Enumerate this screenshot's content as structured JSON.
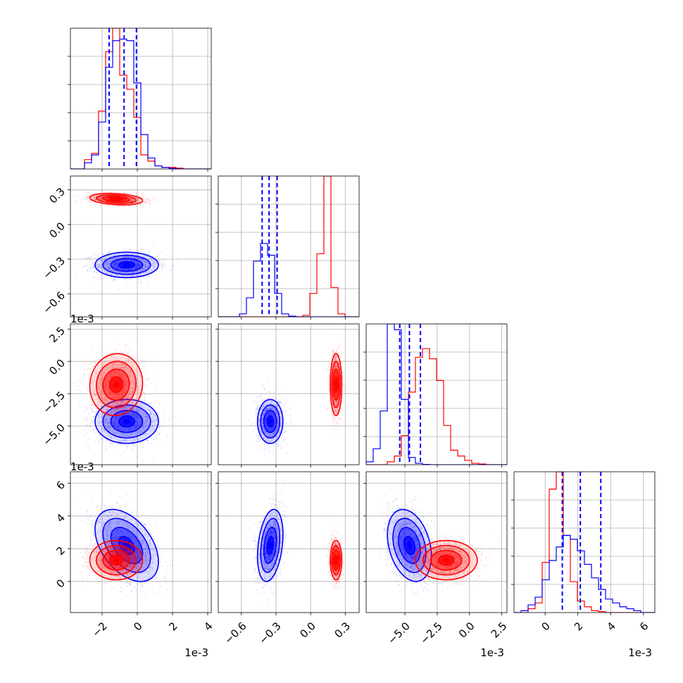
{
  "chart_data": {
    "type": "corner",
    "colors": {
      "series_a": "#0000ff",
      "series_b": "#ff0000",
      "quantile_line": "#0000ff"
    },
    "grid": true,
    "params": [
      {
        "range": [
          -3.8,
          4.2
        ],
        "scale": 0.001,
        "offset_text": "1e-3",
        "ticks": [
          -2,
          0,
          2,
          4
        ],
        "tick_labels": [
          "−2",
          "0",
          "2",
          "4"
        ]
      },
      {
        "range": [
          -0.8,
          0.42
        ],
        "scale": 1,
        "offset_text": "",
        "ticks": [
          -0.6,
          -0.3,
          0.0,
          0.3
        ],
        "tick_labels": [
          "−0.6",
          "−0.3",
          "0.0",
          "0.3"
        ]
      },
      {
        "range": [
          -8.0,
          2.9
        ],
        "scale": 0.001,
        "offset_text": "1e-3",
        "ticks": [
          -5.0,
          -2.5,
          0.0,
          2.5
        ],
        "tick_labels": [
          "−5.0",
          "−2.5",
          "0.0",
          "2.5"
        ]
      },
      {
        "range": [
          -1.9,
          6.7
        ],
        "scale": 0.001,
        "offset_text": "1e-3",
        "ticks": [
          0,
          2,
          4,
          6
        ],
        "tick_labels": [
          "0",
          "2",
          "4",
          "6"
        ]
      }
    ],
    "histograms": [
      {
        "param": 0,
        "bins": [
          -3.8,
          4.2,
          20
        ],
        "quantiles": [
          -1.6,
          -0.75,
          -0.05
        ],
        "blue": [
          0,
          0,
          0.04,
          0.09,
          0.3,
          0.65,
          0.82,
          0.83,
          0.82,
          0.55,
          0.22,
          0.07,
          0.02,
          0.01,
          0.004,
          0,
          0,
          0,
          0,
          0
        ],
        "red": [
          0,
          0,
          0.06,
          0.1,
          0.37,
          0.75,
          0.9,
          0.6,
          0.51,
          0.33,
          0.09,
          0.05,
          0.02,
          0.01,
          0.01,
          0.005,
          0,
          0,
          0,
          0
        ]
      },
      {
        "param": 1,
        "bins": [
          -0.8,
          0.42,
          20
        ],
        "quantiles": [
          -0.42,
          -0.36,
          -0.29
        ],
        "blue": [
          0,
          0,
          0,
          0.02,
          0.13,
          0.38,
          0.5,
          0.42,
          0.16,
          0.02,
          0.005,
          0,
          0,
          0,
          0,
          0,
          0,
          0,
          0,
          0
        ],
        "red": [
          0,
          0,
          0,
          0,
          0,
          0,
          0,
          0,
          0,
          0,
          0,
          0.001,
          0.01,
          0.16,
          0.43,
          0.96,
          0.2,
          0.02,
          0,
          0
        ]
      },
      {
        "param": 2,
        "bins": [
          -8.0,
          2.9,
          20
        ],
        "quantiles": [
          -5.4,
          -4.65,
          -3.8
        ],
        "blue": [
          0.02,
          0.11,
          0.37,
          0.97,
          0.93,
          0.45,
          0.05,
          0.01,
          0.002,
          0,
          0,
          0,
          0,
          0,
          0,
          0,
          0,
          0,
          0,
          0
        ],
        "red": [
          0,
          0,
          0,
          0.02,
          0.06,
          0.2,
          0.5,
          0.74,
          0.8,
          0.73,
          0.58,
          0.27,
          0.1,
          0.06,
          0.03,
          0.01,
          0.005,
          0,
          0,
          0
        ]
      },
      {
        "param": 3,
        "bins": [
          -1.9,
          6.7,
          20
        ],
        "quantiles": [
          1.05,
          2.15,
          3.4
        ],
        "blue": [
          0,
          0.01,
          0.04,
          0.08,
          0.17,
          0.27,
          0.34,
          0.4,
          0.38,
          0.32,
          0.25,
          0.18,
          0.12,
          0.07,
          0.05,
          0.03,
          0.02,
          0.01,
          0,
          0
        ],
        "red": [
          0,
          0,
          0.02,
          0.05,
          0.26,
          0.64,
          0.73,
          0.4,
          0.16,
          0.06,
          0.03,
          0.01,
          0.005,
          0,
          0,
          0,
          0,
          0,
          0,
          0
        ]
      }
    ],
    "posteriors": [
      {
        "name": "",
        "color": "#0000ff",
        "mean": [
          -0.6,
          -0.35,
          -4.65,
          2.2
        ],
        "sd": [
          0.9,
          0.055,
          0.85,
          1.1
        ],
        "corr": [
          [
            1,
            0,
            0,
            -0.45
          ],
          [
            0,
            1,
            0,
            0.3
          ],
          [
            0,
            0,
            1,
            -0.3
          ],
          [
            -0.45,
            0.3,
            -0.3,
            1
          ]
        ]
      },
      {
        "name": "",
        "color": "#ff0000",
        "mean": [
          -1.2,
          0.22,
          -1.8,
          1.3
        ],
        "sd": [
          0.75,
          0.025,
          1.2,
          0.6
        ],
        "corr": [
          [
            1,
            -0.25,
            0.05,
            0
          ],
          [
            -0.25,
            1,
            0,
            0
          ],
          [
            0.05,
            0,
            1,
            0
          ],
          [
            0,
            0,
            0,
            1
          ]
        ]
      }
    ]
  }
}
